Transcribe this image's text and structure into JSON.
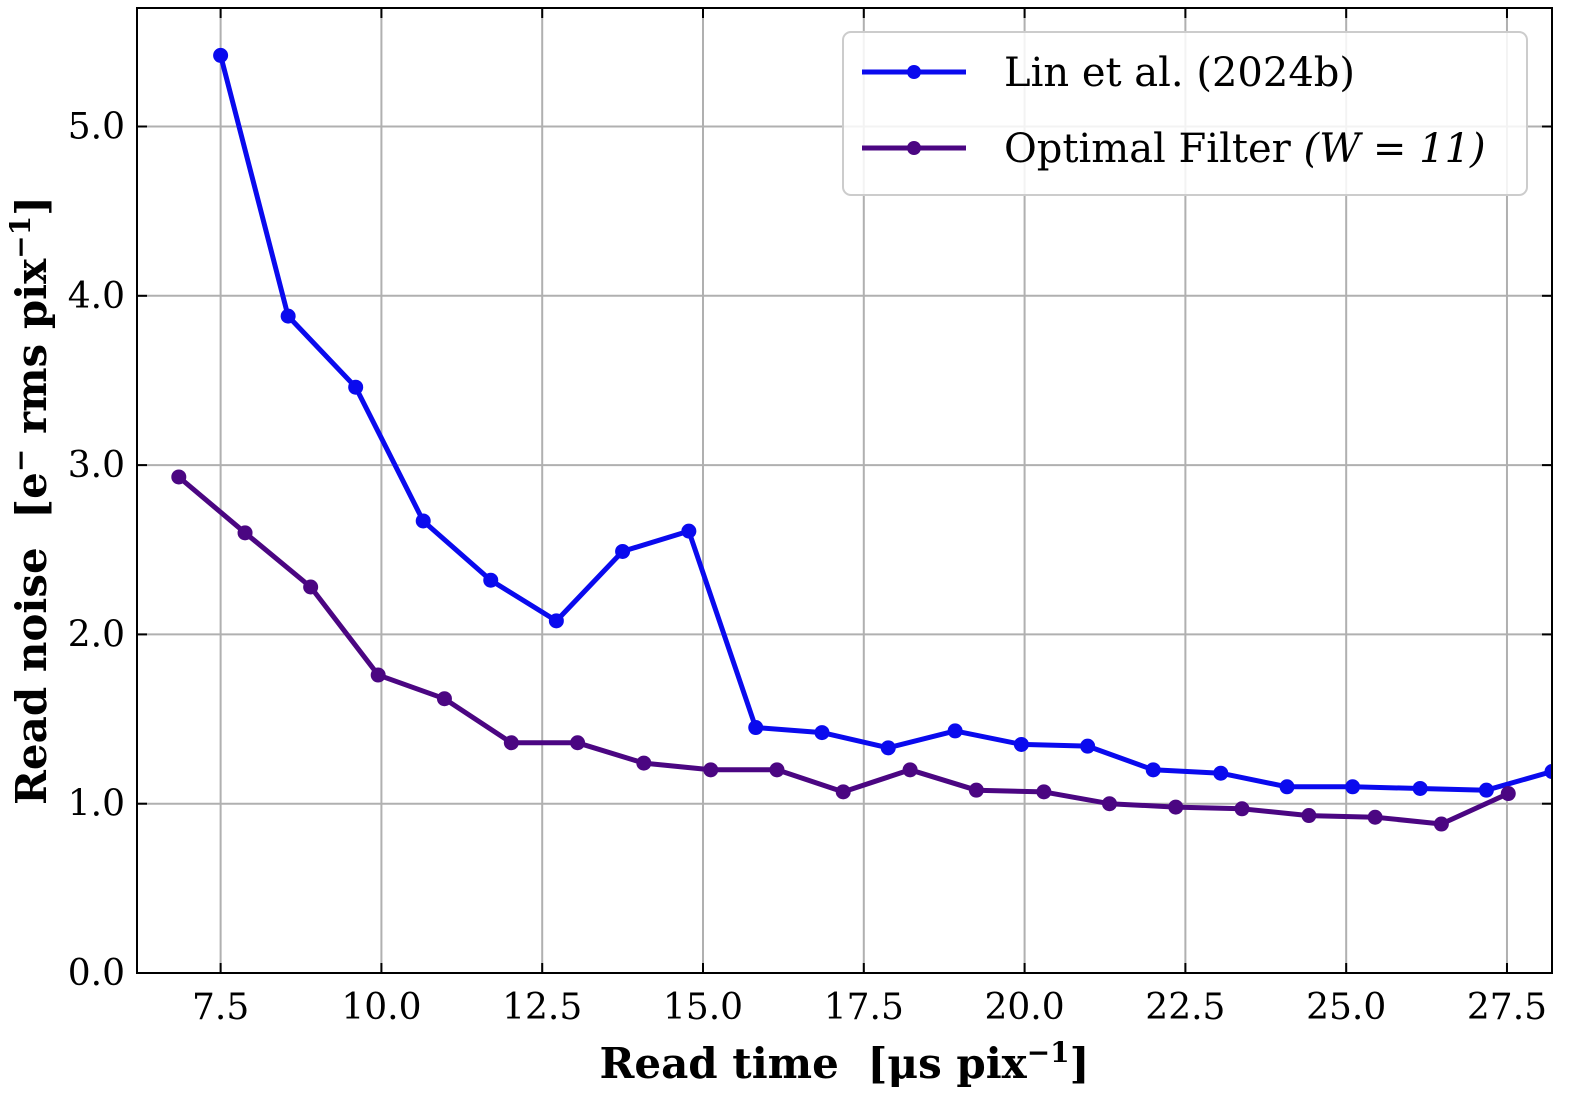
{
  "chart_data": {
    "type": "line",
    "xlabel_main": "Read time",
    "xlabel_unit": "[μs pix",
    "xlabel_sup": "−1",
    "xlabel_close": "]",
    "ylabel_main": "Read noise",
    "ylabel_unit": "[e",
    "ylabel_sup1": "−",
    "ylabel_mid": " rms pix",
    "ylabel_sup2": "−1",
    "ylabel_close": "]",
    "xlim": [
      6.2,
      28.2
    ],
    "ylim": [
      0.0,
      5.7
    ],
    "xticks": [
      7.5,
      10.0,
      12.5,
      15.0,
      17.5,
      20.0,
      22.5,
      25.0,
      27.5
    ],
    "xtick_labels": [
      "7.5",
      "10.0",
      "12.5",
      "15.0",
      "17.5",
      "20.0",
      "22.5",
      "25.0",
      "27.5"
    ],
    "yticks": [
      0.0,
      1.0,
      2.0,
      3.0,
      4.0,
      5.0
    ],
    "ytick_labels": [
      "0.0",
      "1.0",
      "2.0",
      "3.0",
      "4.0",
      "5.0"
    ],
    "grid": true,
    "legend_position": "top-right",
    "series": [
      {
        "name": "Lin et al. (2024b)",
        "color": "#0a0aee",
        "x": [
          7.5,
          8.55,
          9.6,
          10.65,
          11.7,
          12.72,
          13.75,
          14.78,
          15.82,
          16.85,
          17.88,
          18.92,
          19.95,
          20.98,
          22.0,
          23.05,
          24.08,
          25.1,
          26.15,
          27.18,
          28.2
        ],
        "y": [
          5.42,
          3.88,
          3.46,
          2.67,
          2.32,
          2.08,
          2.49,
          2.61,
          1.45,
          1.42,
          1.33,
          1.43,
          1.35,
          1.34,
          1.2,
          1.18,
          1.1,
          1.1,
          1.09,
          1.08,
          1.19
        ]
      },
      {
        "name": "Optimal Filter",
        "name_math": "(W = 11)",
        "color": "#4b0682",
        "x": [
          6.85,
          7.88,
          8.9,
          9.95,
          10.98,
          12.02,
          13.05,
          14.08,
          15.12,
          16.15,
          17.18,
          18.22,
          19.25,
          20.3,
          21.32,
          22.35,
          23.38,
          24.42,
          25.45,
          26.48,
          27.52
        ],
        "y": [
          2.93,
          2.6,
          2.28,
          1.76,
          1.62,
          1.36,
          1.36,
          1.24,
          1.2,
          1.2,
          1.07,
          1.2,
          1.08,
          1.07,
          1.0,
          0.98,
          0.97,
          0.93,
          0.92,
          0.88,
          1.06
        ]
      }
    ]
  }
}
